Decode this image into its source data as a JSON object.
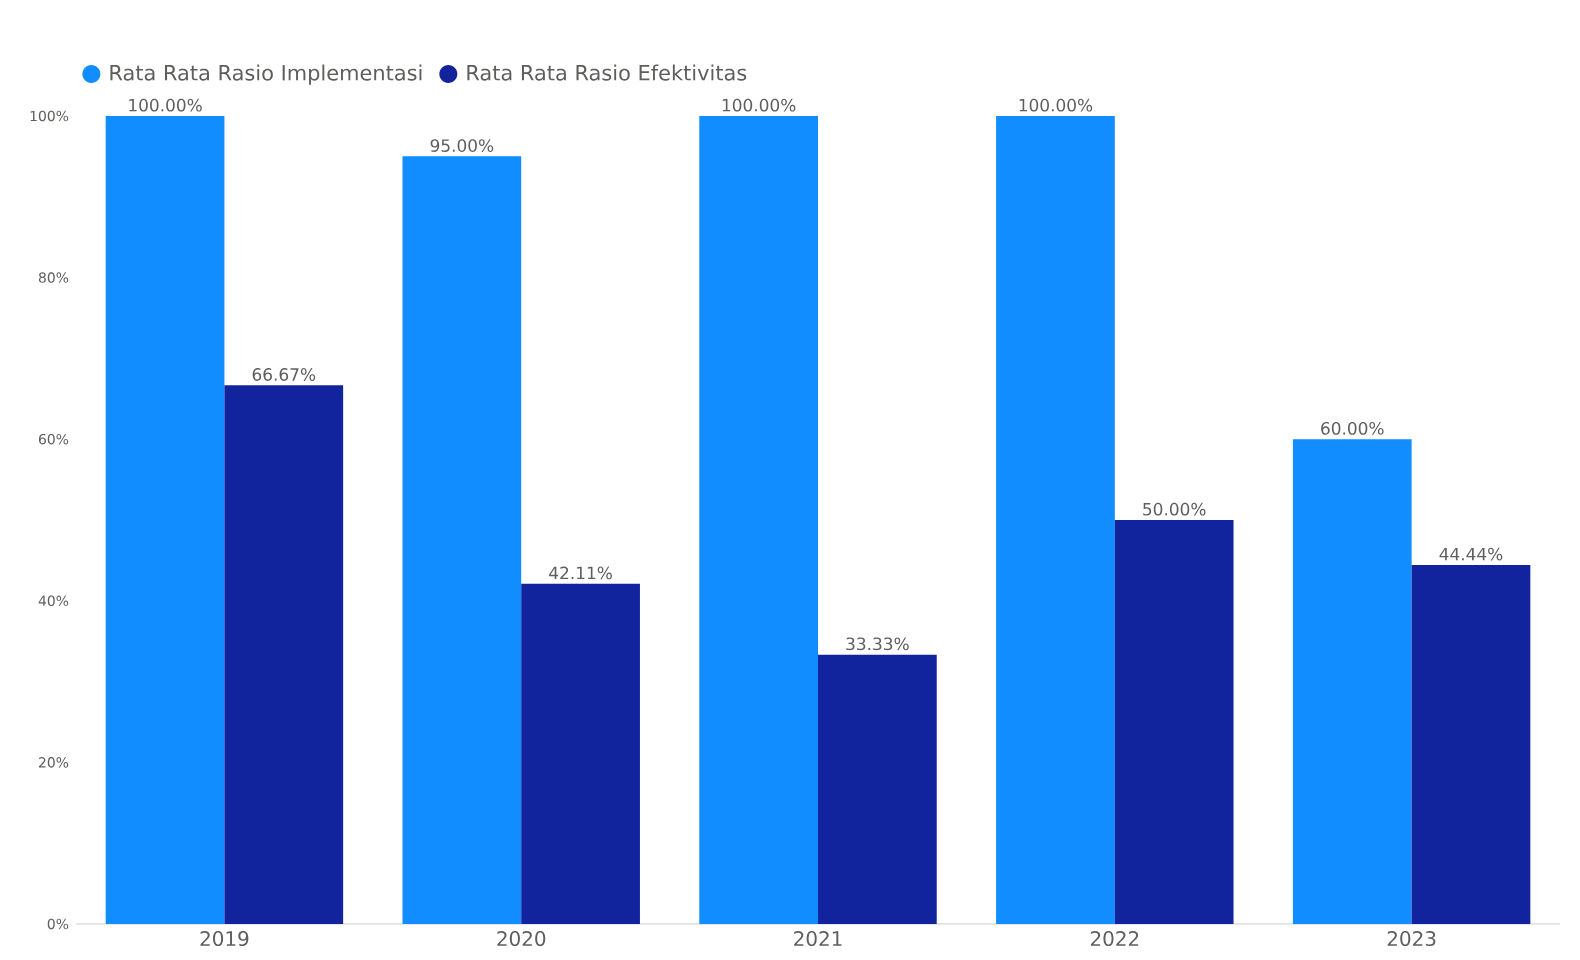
{
  "chart_data": {
    "type": "bar",
    "categories": [
      "2019",
      "2020",
      "2021",
      "2022",
      "2023"
    ],
    "series": [
      {
        "name": "Rata Rata Rasio Implementasi",
        "color": "#118dff",
        "values": [
          100,
          95,
          100,
          100,
          60
        ],
        "value_labels": [
          "100.00%",
          "95.00%",
          "100.00%",
          "100.00%",
          "60.00%"
        ]
      },
      {
        "name": "Rata Rata Rasio Efektivitas",
        "color": "#12239e",
        "values": [
          66.67,
          42.11,
          33.33,
          50,
          44.44
        ],
        "value_labels": [
          "66.67%",
          "42.11%",
          "33.33%",
          "50.00%",
          "44.44%"
        ]
      }
    ],
    "ylim": [
      0,
      100
    ],
    "yticks": [
      {
        "value": 0,
        "label": "0%"
      },
      {
        "value": 20,
        "label": "20%"
      },
      {
        "value": 40,
        "label": "40%"
      },
      {
        "value": 60,
        "label": "60%"
      },
      {
        "value": 80,
        "label": "80%"
      },
      {
        "value": 100,
        "label": "100%"
      }
    ],
    "grid": false,
    "legend": "top left",
    "marker": "circle"
  }
}
